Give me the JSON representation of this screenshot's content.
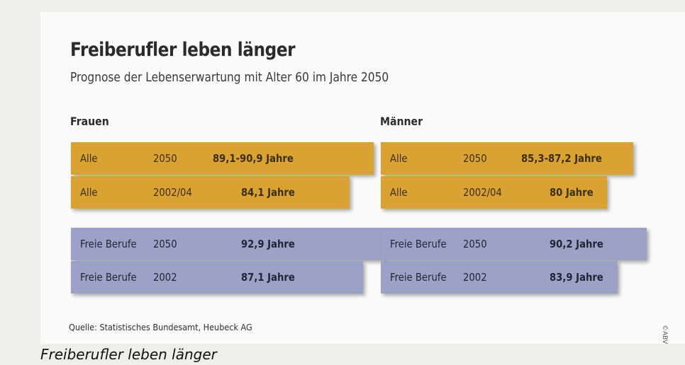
{
  "chart_data": {
    "type": "table",
    "title": "Freiberufler leben länger",
    "subtitle": "Prognose der Lebenserwartung mit Alter 60 im Jahre 2050",
    "groups": [
      {
        "name": "Frauen",
        "rows": [
          {
            "category": "Alle",
            "year": "2050",
            "value_label": "89,1-90,9 Jahre",
            "value": [
              89.1,
              90.9
            ],
            "color": "#d9a233"
          },
          {
            "category": "Alle",
            "year": "2002/04",
            "value_label": "84,1 Jahre",
            "value": 84.1,
            "color": "#d9a233"
          },
          {
            "category": "Freie Berufe",
            "year": "2050",
            "value_label": "92,9 Jahre",
            "value": 92.9,
            "color": "#9aa3c7"
          },
          {
            "category": "Freie Berufe",
            "year": "2002",
            "value_label": "87,1 Jahre",
            "value": 87.1,
            "color": "#9aa3c7"
          }
        ]
      },
      {
        "name": "Männer",
        "rows": [
          {
            "category": "Alle",
            "year": "2050",
            "value_label": "85,3-87,2 Jahre",
            "value": [
              85.3,
              87.2
            ],
            "color": "#d9a233"
          },
          {
            "category": "Alle",
            "year": "2002/04",
            "value_label": "80 Jahre",
            "value": 80,
            "color": "#d9a233"
          },
          {
            "category": "Freie Berufe",
            "year": "2050",
            "value_label": "90,2 Jahre",
            "value": 90.2,
            "color": "#9aa3c7"
          },
          {
            "category": "Freie Berufe",
            "year": "2002",
            "value_label": "83,9 Jahre",
            "value": 83.9,
            "color": "#9aa3c7"
          }
        ]
      }
    ],
    "source": "Quelle: Statistisches Bundesamt, Heubeck AG",
    "credit": "©ABV"
  },
  "caption": "Freiberufler leben länger"
}
